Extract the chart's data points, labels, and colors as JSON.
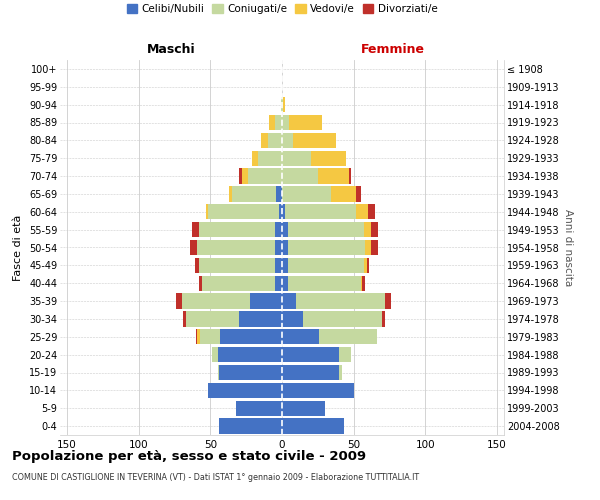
{
  "age_groups": [
    "0-4",
    "5-9",
    "10-14",
    "15-19",
    "20-24",
    "25-29",
    "30-34",
    "35-39",
    "40-44",
    "45-49",
    "50-54",
    "55-59",
    "60-64",
    "65-69",
    "70-74",
    "75-79",
    "80-84",
    "85-89",
    "90-94",
    "95-99",
    "100+"
  ],
  "birth_years": [
    "2004-2008",
    "1999-2003",
    "1994-1998",
    "1989-1993",
    "1984-1988",
    "1979-1983",
    "1974-1978",
    "1969-1973",
    "1964-1968",
    "1959-1963",
    "1954-1958",
    "1949-1953",
    "1944-1948",
    "1939-1943",
    "1934-1938",
    "1929-1933",
    "1924-1928",
    "1919-1923",
    "1914-1918",
    "1909-1913",
    "≤ 1908"
  ],
  "male": {
    "celibi": [
      44,
      32,
      52,
      44,
      45,
      43,
      30,
      22,
      5,
      5,
      5,
      5,
      2,
      4,
      0,
      0,
      0,
      0,
      0,
      0,
      0
    ],
    "coniugati": [
      0,
      0,
      0,
      1,
      4,
      14,
      37,
      48,
      51,
      53,
      54,
      53,
      50,
      31,
      24,
      17,
      10,
      5,
      1,
      0,
      0
    ],
    "vedovi": [
      0,
      0,
      0,
      0,
      0,
      2,
      0,
      0,
      0,
      0,
      0,
      0,
      1,
      2,
      4,
      4,
      5,
      4,
      0,
      0,
      0
    ],
    "divorziati": [
      0,
      0,
      0,
      0,
      0,
      1,
      2,
      4,
      2,
      3,
      5,
      5,
      0,
      0,
      2,
      0,
      0,
      0,
      0,
      0,
      0
    ]
  },
  "female": {
    "nubili": [
      43,
      30,
      50,
      40,
      40,
      26,
      15,
      10,
      4,
      4,
      4,
      4,
      2,
      0,
      0,
      0,
      0,
      0,
      0,
      0,
      0
    ],
    "coniugate": [
      0,
      0,
      0,
      2,
      8,
      40,
      55,
      62,
      51,
      53,
      54,
      53,
      50,
      34,
      25,
      20,
      8,
      5,
      1,
      0,
      0
    ],
    "vedove": [
      0,
      0,
      0,
      0,
      0,
      0,
      0,
      0,
      1,
      2,
      4,
      5,
      8,
      18,
      22,
      25,
      30,
      23,
      1,
      0,
      0
    ],
    "divorziate": [
      0,
      0,
      0,
      0,
      0,
      0,
      2,
      4,
      2,
      2,
      5,
      5,
      5,
      3,
      1,
      0,
      0,
      0,
      0,
      0,
      0
    ]
  },
  "colors": {
    "celibi": "#4472C4",
    "coniugati": "#C5D9A0",
    "vedovi": "#F5C842",
    "divorziati": "#C0302A"
  },
  "title": "Popolazione per età, sesso e stato civile - 2009",
  "subtitle": "COMUNE DI CASTIGLIONE IN TEVERINA (VT) - Dati ISTAT 1° gennaio 2009 - Elaborazione TUTTITALIA.IT",
  "xlabel_left": "Maschi",
  "xlabel_right": "Femmine",
  "ylabel_left": "Fasce di età",
  "ylabel_right": "Anni di nascita",
  "xlim": 155,
  "legend_labels": [
    "Celibi/Nubili",
    "Coniugati/e",
    "Vedovi/e",
    "Divorziati/e"
  ],
  "bg_color": "#ffffff",
  "grid_color": "#cccccc"
}
